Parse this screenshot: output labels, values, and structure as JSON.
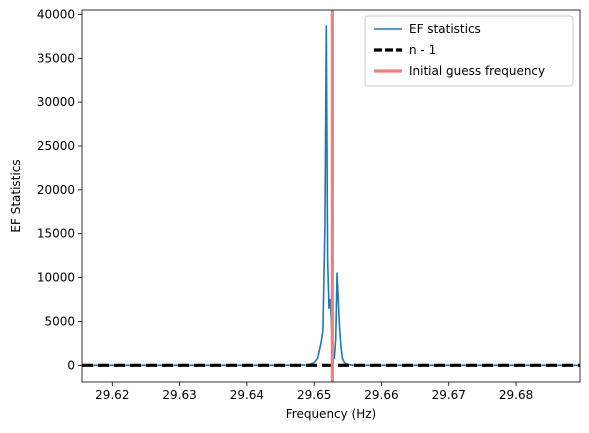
{
  "chart_data": {
    "type": "line",
    "xlabel": "Frequency (Hz)",
    "ylabel": "EF Statistics",
    "xlim": [
      29.6155,
      29.6895
    ],
    "ylim": [
      -1900,
      40500
    ],
    "x_ticks": [
      29.62,
      29.63,
      29.64,
      29.65,
      29.66,
      29.67,
      29.68
    ],
    "x_tick_labels": [
      "29.62",
      "29.63",
      "29.64",
      "29.65",
      "29.66",
      "29.67",
      "29.68"
    ],
    "y_ticks": [
      0,
      5000,
      10000,
      15000,
      20000,
      25000,
      30000,
      35000,
      40000
    ],
    "y_tick_labels": [
      "0",
      "5000",
      "10000",
      "15000",
      "20000",
      "25000",
      "30000",
      "35000",
      "40000"
    ],
    "grid": false,
    "legend_position": "top-right",
    "series": [
      {
        "name": "EF statistics",
        "color": "#1f77b4",
        "style": "solid",
        "x": [
          29.6155,
          29.63,
          29.645,
          29.649,
          29.65,
          29.6505,
          29.651,
          29.6513,
          29.6516,
          29.6518,
          29.652,
          29.6522,
          29.6524,
          29.6526,
          29.6528,
          29.653,
          29.6532,
          29.6534,
          29.6536,
          29.6538,
          29.654,
          29.6542,
          29.6545,
          29.655,
          29.656,
          29.66,
          29.675,
          29.6895
        ],
        "y": [
          0,
          0,
          0,
          50,
          300,
          800,
          2500,
          4000,
          16000,
          38700,
          12000,
          6500,
          7500,
          4000,
          1200,
          800,
          3000,
          10500,
          7000,
          4000,
          2000,
          800,
          300,
          100,
          0,
          0,
          0,
          0
        ]
      },
      {
        "name": "n - 1",
        "color": "#000000",
        "style": "dashed",
        "x": [
          29.6155,
          29.6895
        ],
        "y": [
          0,
          0
        ]
      }
    ],
    "vertical_lines": [
      {
        "name": "Initial guess frequency",
        "color": "#f08080",
        "x": 29.6527
      }
    ]
  }
}
